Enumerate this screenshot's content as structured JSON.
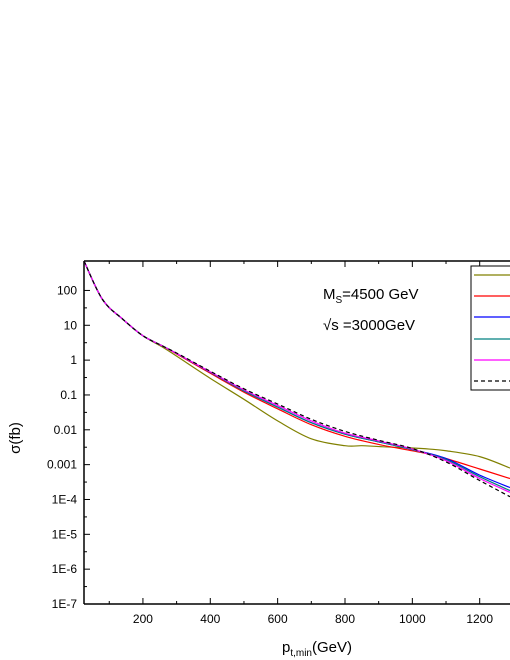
{
  "chart_data": {
    "type": "line",
    "xlabel": "p",
    "xlabel_sub": "t,min",
    "xlabel_unit": "(GeV)",
    "ylabel": "σ(fb)",
    "xlim": [
      25,
      1290
    ],
    "ylim": [
      1e-07,
      700
    ],
    "y_scale": "log",
    "x_ticks": [
      200,
      400,
      600,
      800,
      1000,
      1200
    ],
    "x_tick_labels": [
      "200",
      "400",
      "600",
      "800",
      "1000",
      "1200"
    ],
    "y_ticks": [
      100,
      10,
      1,
      0.1,
      0.01,
      0.001,
      0.0001,
      1e-05,
      1e-06,
      1e-07
    ],
    "y_tick_labels": [
      "100",
      "10",
      "1",
      "0.1",
      "0.01",
      "0.001",
      "1E-4",
      "1E-5",
      "1E-6",
      "1E-7"
    ],
    "annotations": {
      "ms_main": "M",
      "ms_sub": "S",
      "ms_rest": "=4500 GeV",
      "sqrt_s": "√s =3000GeV"
    },
    "legend": {
      "placement": "top-right",
      "entries": 6
    },
    "series": [
      {
        "color": "#808000",
        "dash": false,
        "x": [
          25,
          80,
          140,
          200,
          260,
          300,
          400,
          500,
          600,
          700,
          800,
          850,
          900,
          1000,
          1050,
          1100,
          1200,
          1290
        ],
        "y": [
          700,
          55,
          15,
          5,
          2.3,
          1.3,
          0.3,
          0.075,
          0.018,
          0.0055,
          0.0035,
          0.0035,
          0.0033,
          0.003,
          0.0028,
          0.0025,
          0.0017,
          0.0008
        ]
      },
      {
        "color": "#ff0000",
        "dash": false,
        "x": [
          25,
          80,
          140,
          200,
          260,
          300,
          400,
          500,
          600,
          700,
          800,
          900,
          1000,
          1050,
          1100,
          1200,
          1290
        ],
        "y": [
          700,
          55,
          15,
          5,
          2.5,
          1.5,
          0.42,
          0.12,
          0.04,
          0.014,
          0.0065,
          0.0038,
          0.0025,
          0.002,
          0.0015,
          0.00075,
          0.0004
        ]
      },
      {
        "color": "#0000ff",
        "dash": false,
        "x": [
          25,
          80,
          140,
          200,
          260,
          300,
          400,
          500,
          600,
          700,
          800,
          900,
          1000,
          1100,
          1200,
          1290
        ],
        "y": [
          700,
          55,
          15,
          5,
          2.5,
          1.55,
          0.45,
          0.13,
          0.045,
          0.016,
          0.0075,
          0.0045,
          0.0027,
          0.0015,
          0.0005,
          0.00022
        ]
      },
      {
        "color": "#008080",
        "dash": false,
        "x": [
          25,
          80,
          140,
          200,
          260,
          300,
          400,
          500,
          600,
          700,
          800,
          900,
          1000,
          1100,
          1200,
          1290
        ],
        "y": [
          700,
          55,
          15,
          5,
          2.5,
          1.55,
          0.45,
          0.13,
          0.045,
          0.016,
          0.0075,
          0.0045,
          0.0027,
          0.0014,
          0.00045,
          0.00018
        ]
      },
      {
        "color": "#ff00ff",
        "dash": false,
        "x": [
          25,
          80,
          140,
          200,
          260,
          300,
          400,
          500,
          600,
          700,
          800,
          900,
          1000,
          1100,
          1200,
          1290
        ],
        "y": [
          700,
          55,
          15,
          5,
          2.5,
          1.55,
          0.46,
          0.14,
          0.05,
          0.018,
          0.008,
          0.0048,
          0.0028,
          0.0013,
          0.0004,
          0.00016
        ]
      },
      {
        "color": "#000000",
        "dash": true,
        "x": [
          25,
          80,
          140,
          200,
          260,
          300,
          400,
          500,
          600,
          700,
          800,
          900,
          1000,
          1100,
          1200,
          1290
        ],
        "y": [
          700,
          55,
          15,
          5,
          2.5,
          1.6,
          0.48,
          0.15,
          0.055,
          0.02,
          0.009,
          0.005,
          0.0029,
          0.0012,
          0.00035,
          0.00012
        ]
      }
    ]
  }
}
